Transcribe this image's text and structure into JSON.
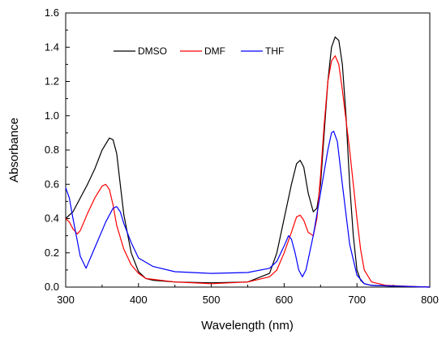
{
  "chart_data": {
    "type": "line",
    "xlabel": "Wavelength (nm)",
    "ylabel": "Absorbance",
    "xlim": [
      300,
      800
    ],
    "ylim": [
      0.0,
      1.6
    ],
    "x_ticks": [
      300,
      400,
      500,
      600,
      700,
      800
    ],
    "x_tick_labels": [
      "300",
      "400",
      "500",
      "600",
      "700",
      "800"
    ],
    "y_ticks": [
      0.0,
      0.2,
      0.4,
      0.6,
      0.8,
      1.0,
      1.2,
      1.4,
      1.6
    ],
    "y_tick_labels": [
      "0.0",
      "0.2",
      "0.4",
      "0.6",
      "0.8",
      "1.0",
      "1.2",
      "1.4",
      "1.6"
    ],
    "grid": false,
    "legend_position": "top-left",
    "series": [
      {
        "name": "DMSO",
        "color": "#000000",
        "points": [
          [
            300,
            0.4
          ],
          [
            310,
            0.44
          ],
          [
            320,
            0.52
          ],
          [
            330,
            0.6
          ],
          [
            340,
            0.69
          ],
          [
            350,
            0.8
          ],
          [
            360,
            0.87
          ],
          [
            365,
            0.86
          ],
          [
            370,
            0.78
          ],
          [
            375,
            0.6
          ],
          [
            380,
            0.42
          ],
          [
            390,
            0.2
          ],
          [
            400,
            0.09
          ],
          [
            410,
            0.05
          ],
          [
            420,
            0.04
          ],
          [
            450,
            0.03
          ],
          [
            500,
            0.025
          ],
          [
            550,
            0.03
          ],
          [
            580,
            0.08
          ],
          [
            590,
            0.2
          ],
          [
            600,
            0.4
          ],
          [
            610,
            0.6
          ],
          [
            617,
            0.72
          ],
          [
            622,
            0.74
          ],
          [
            627,
            0.7
          ],
          [
            633,
            0.55
          ],
          [
            640,
            0.44
          ],
          [
            645,
            0.46
          ],
          [
            650,
            0.6
          ],
          [
            655,
            0.9
          ],
          [
            660,
            1.2
          ],
          [
            665,
            1.4
          ],
          [
            670,
            1.46
          ],
          [
            675,
            1.44
          ],
          [
            680,
            1.3
          ],
          [
            685,
            1.0
          ],
          [
            690,
            0.6
          ],
          [
            695,
            0.3
          ],
          [
            700,
            0.1
          ],
          [
            705,
            0.04
          ],
          [
            710,
            0.02
          ],
          [
            720,
            0.01
          ],
          [
            750,
            0.005
          ],
          [
            800,
            0.0
          ]
        ]
      },
      {
        "name": "DMF",
        "color": "#ff0000",
        "points": [
          [
            300,
            0.4
          ],
          [
            305,
            0.38
          ],
          [
            310,
            0.34
          ],
          [
            316,
            0.31
          ],
          [
            320,
            0.33
          ],
          [
            330,
            0.43
          ],
          [
            340,
            0.52
          ],
          [
            350,
            0.59
          ],
          [
            355,
            0.6
          ],
          [
            360,
            0.57
          ],
          [
            365,
            0.48
          ],
          [
            370,
            0.36
          ],
          [
            380,
            0.22
          ],
          [
            390,
            0.13
          ],
          [
            400,
            0.08
          ],
          [
            410,
            0.05
          ],
          [
            450,
            0.03
          ],
          [
            500,
            0.02
          ],
          [
            550,
            0.03
          ],
          [
            580,
            0.06
          ],
          [
            590,
            0.1
          ],
          [
            600,
            0.2
          ],
          [
            610,
            0.32
          ],
          [
            617,
            0.41
          ],
          [
            622,
            0.42
          ],
          [
            627,
            0.39
          ],
          [
            633,
            0.32
          ],
          [
            640,
            0.3
          ],
          [
            645,
            0.4
          ],
          [
            650,
            0.65
          ],
          [
            655,
            0.95
          ],
          [
            660,
            1.2
          ],
          [
            665,
            1.32
          ],
          [
            670,
            1.35
          ],
          [
            675,
            1.3
          ],
          [
            680,
            1.15
          ],
          [
            690,
            0.8
          ],
          [
            700,
            0.4
          ],
          [
            705,
            0.22
          ],
          [
            710,
            0.1
          ],
          [
            720,
            0.03
          ],
          [
            740,
            0.01
          ],
          [
            765,
            0.005
          ],
          [
            800,
            0.0
          ]
        ]
      },
      {
        "name": "THF",
        "color": "#0000ff",
        "points": [
          [
            300,
            0.58
          ],
          [
            305,
            0.52
          ],
          [
            310,
            0.4
          ],
          [
            320,
            0.18
          ],
          [
            328,
            0.11
          ],
          [
            335,
            0.18
          ],
          [
            345,
            0.28
          ],
          [
            355,
            0.38
          ],
          [
            365,
            0.46
          ],
          [
            370,
            0.47
          ],
          [
            375,
            0.44
          ],
          [
            380,
            0.37
          ],
          [
            390,
            0.26
          ],
          [
            400,
            0.17
          ],
          [
            420,
            0.12
          ],
          [
            450,
            0.09
          ],
          [
            500,
            0.08
          ],
          [
            550,
            0.085
          ],
          [
            580,
            0.11
          ],
          [
            590,
            0.15
          ],
          [
            600,
            0.24
          ],
          [
            606,
            0.3
          ],
          [
            610,
            0.28
          ],
          [
            615,
            0.2
          ],
          [
            620,
            0.1
          ],
          [
            625,
            0.06
          ],
          [
            630,
            0.1
          ],
          [
            640,
            0.3
          ],
          [
            650,
            0.55
          ],
          [
            660,
            0.8
          ],
          [
            665,
            0.9
          ],
          [
            668,
            0.91
          ],
          [
            673,
            0.85
          ],
          [
            680,
            0.6
          ],
          [
            690,
            0.25
          ],
          [
            700,
            0.07
          ],
          [
            710,
            0.02
          ],
          [
            720,
            0.01
          ],
          [
            800,
            0.0
          ]
        ]
      }
    ]
  }
}
